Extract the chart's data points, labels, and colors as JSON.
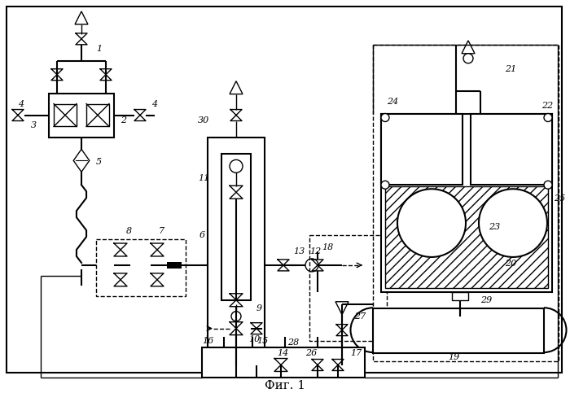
{
  "title": "Фиг. 1",
  "bg_color": "#ffffff",
  "fig_width": 7.0,
  "fig_height": 4.83
}
